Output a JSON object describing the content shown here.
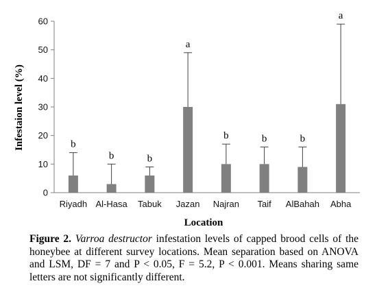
{
  "chart_data": {
    "type": "bar",
    "title": "",
    "xlabel": "Location",
    "ylabel": "Infestaion level (%)",
    "ylim": [
      0,
      60
    ],
    "yticks": [
      0,
      10,
      20,
      30,
      40,
      50,
      60
    ],
    "grid": false,
    "legend": "none",
    "bar_color": "#808080",
    "categories": [
      "Riyadh",
      "Al-Hasa",
      "Tabuk",
      "Jazan",
      "Najran",
      "Taif",
      "AlBahah",
      "Abha"
    ],
    "values": [
      6,
      3,
      6,
      30,
      10,
      10,
      9,
      31
    ],
    "error_upper": [
      14,
      10,
      9,
      49,
      17,
      16,
      16,
      59
    ],
    "significance_letters": [
      "b",
      "b",
      "b",
      "a",
      "b",
      "b",
      "b",
      "a"
    ]
  },
  "caption": {
    "label": "Figure 2.",
    "species": "Varroa destructor",
    "text": " infestation levels of capped brood cells of the honeybee at different survey locations. Mean separation based on ANOVA and LSM, DF = 7 and P < 0.05, F = 5.2, P < 0.001. Means sharing same letters are not significantly different."
  }
}
